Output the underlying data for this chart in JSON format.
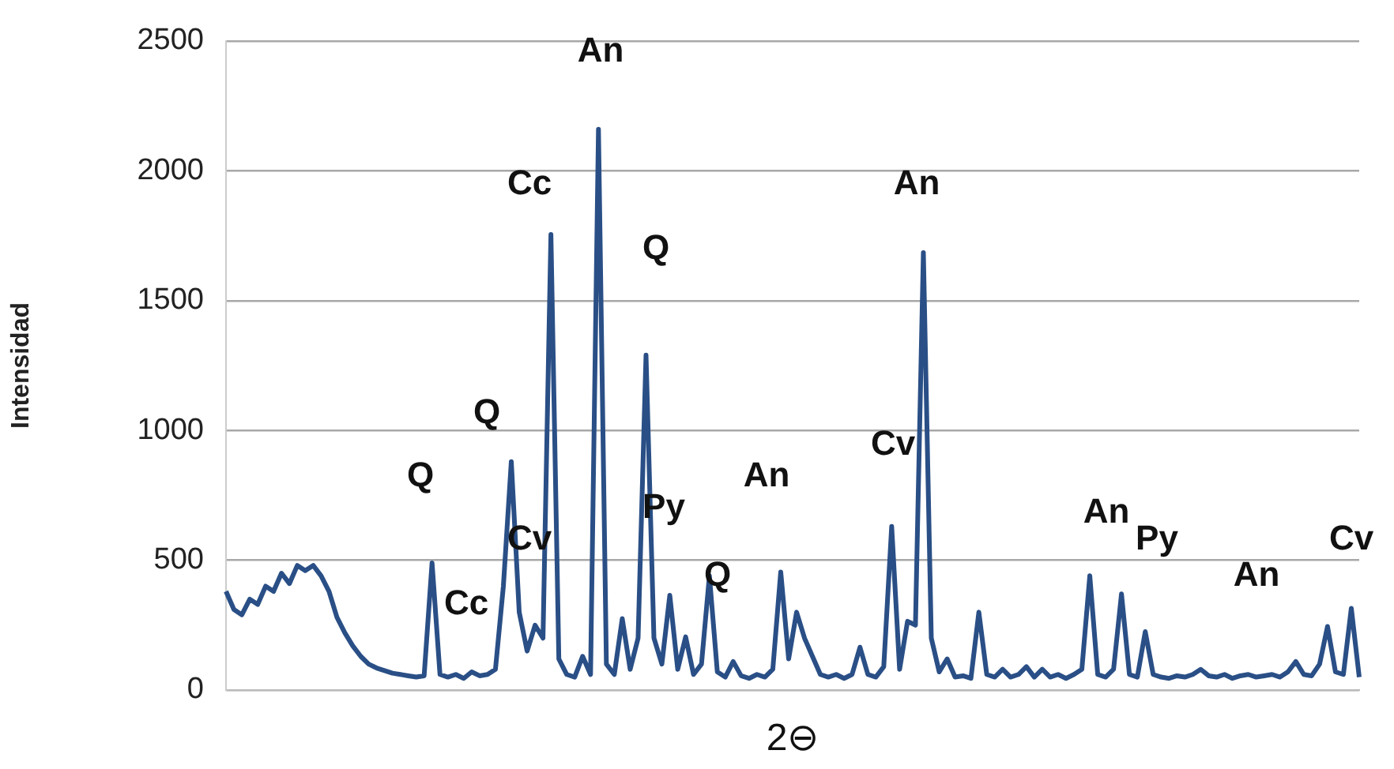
{
  "chart_data": {
    "type": "line",
    "xlabel": "2⊖",
    "ylabel": "Intensidad",
    "categories": [
      null,
      null,
      null,
      null,
      null,
      null,
      null,
      null,
      null,
      null,
      null,
      null,
      null,
      null,
      null,
      null,
      null,
      null,
      null,
      null,
      null,
      null,
      null,
      null,
      null,
      null,
      null,
      null,
      null,
      null,
      null,
      null,
      null,
      null,
      null,
      null,
      null,
      null,
      null,
      null,
      null,
      null,
      null,
      null,
      null,
      null,
      null,
      null,
      null,
      null,
      null,
      null,
      null,
      null,
      null,
      null,
      null,
      null,
      null,
      null,
      null,
      null,
      null,
      null,
      null,
      null,
      null,
      null,
      null,
      null,
      null,
      null,
      null,
      null,
      null,
      null,
      null,
      null,
      null,
      null,
      null,
      null,
      null,
      null,
      null,
      null,
      null,
      null,
      null,
      null,
      null,
      null,
      null,
      null,
      null,
      null,
      null,
      null,
      null,
      null,
      null,
      null,
      null,
      null,
      null,
      null,
      null,
      null,
      null,
      null,
      null,
      null,
      null,
      null,
      null,
      null,
      null,
      null,
      null,
      null,
      null,
      null,
      null,
      null,
      null,
      null,
      null,
      null,
      null,
      null,
      null,
      null,
      null,
      null,
      null,
      null,
      null,
      null,
      null,
      null,
      null,
      null,
      null,
      null
    ],
    "values": [
      380,
      310,
      290,
      350,
      330,
      400,
      380,
      450,
      410,
      480,
      460,
      480,
      440,
      380,
      280,
      220,
      170,
      130,
      100,
      85,
      75,
      65,
      60,
      55,
      50,
      55,
      490,
      60,
      50,
      60,
      45,
      70,
      55,
      60,
      80,
      400,
      880,
      300,
      150,
      250,
      200,
      1755,
      120,
      60,
      50,
      130,
      60,
      2160,
      100,
      60,
      275,
      80,
      200,
      1290,
      200,
      100,
      365,
      80,
      205,
      60,
      100,
      440,
      70,
      50,
      110,
      55,
      45,
      60,
      50,
      80,
      455,
      120,
      300,
      200,
      130,
      60,
      50,
      60,
      45,
      60,
      165,
      60,
      50,
      90,
      630,
      80,
      265,
      250,
      1685,
      200,
      70,
      120,
      50,
      55,
      45,
      300,
      60,
      50,
      80,
      50,
      60,
      90,
      50,
      80,
      50,
      60,
      45,
      60,
      80,
      440,
      60,
      50,
      80,
      370,
      60,
      50,
      225,
      60,
      50,
      45,
      55,
      50,
      60,
      80,
      55,
      50,
      60,
      45,
      55,
      60,
      50,
      55,
      60,
      50,
      70,
      110,
      60,
      55,
      100,
      245,
      70,
      60,
      315,
      50
    ],
    "color": "#2a4f86",
    "marker": "none",
    "line_style": "solid",
    "ylim": [
      0,
      2500
    ],
    "yticks": [
      0,
      500,
      1000,
      1500,
      2000,
      2500
    ],
    "grid": "y",
    "tick_labels": "y",
    "annotations": [
      "An",
      "Cc",
      "An",
      "Q",
      "Q",
      "Cv",
      "An",
      "Q",
      "Py",
      "Cv",
      "An",
      "Py",
      "Q",
      "Cc",
      "An",
      "Cv"
    ]
  }
}
